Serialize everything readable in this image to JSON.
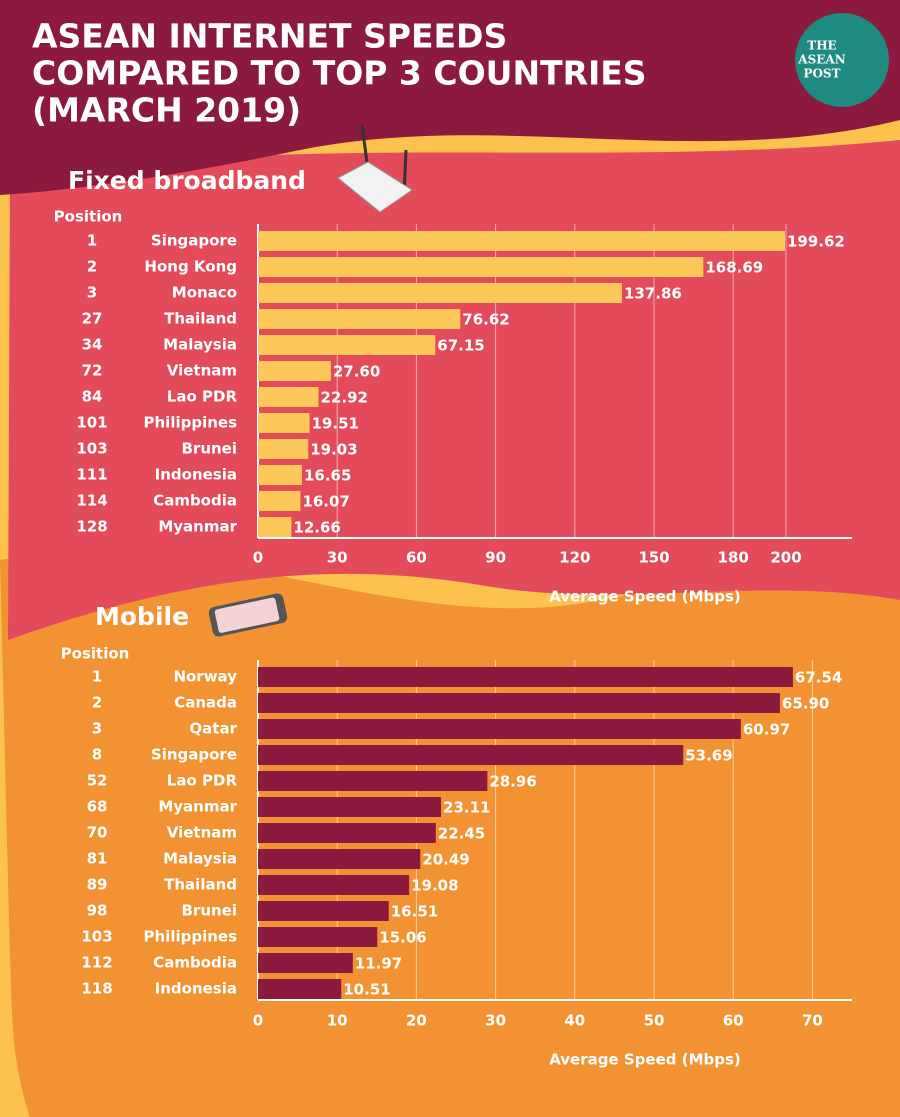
{
  "title": [
    "ASEAN INTERNET SPEEDS",
    "COMPARED TO TOP 3 COUNTRIES",
    "(MARCH 2019)"
  ],
  "logo": [
    "THE",
    "ASEAN",
    "POST"
  ],
  "chart_data": [
    {
      "type": "bar",
      "title": "Fixed broadband",
      "position_header": "Position",
      "positions": [
        1,
        2,
        3,
        27,
        34,
        72,
        84,
        101,
        103,
        111,
        114,
        128
      ],
      "categories": [
        "Singapore",
        "Hong Kong",
        "Monaco",
        "Thailand",
        "Malaysia",
        "Vietnam",
        "Lao PDR",
        "Philippines",
        "Brunei",
        "Indonesia",
        "Cambodia",
        "Myanmar"
      ],
      "values": [
        199.62,
        168.69,
        137.86,
        76.62,
        67.15,
        27.6,
        22.92,
        19.51,
        19.03,
        16.65,
        16.07,
        12.66
      ],
      "value_labels": [
        "199.62",
        "168.69",
        "137.86",
        "76.62",
        "67.15",
        "27.60",
        "22.92",
        "19.51",
        "19.03",
        "16.65",
        "16.07",
        "12.66"
      ],
      "color": "#fdc85a",
      "xlim": [
        0,
        225
      ],
      "xticks": [
        0,
        30,
        60,
        90,
        120,
        150,
        180,
        200
      ],
      "xlabel": "Average Speed (Mbps)",
      "grid": true
    },
    {
      "type": "bar",
      "title": "Mobile",
      "position_header": "Position",
      "positions": [
        1,
        2,
        3,
        8,
        52,
        68,
        70,
        81,
        89,
        98,
        103,
        112,
        118
      ],
      "categories": [
        "Norway",
        "Canada",
        "Qatar",
        "Singapore",
        "Lao PDR",
        "Myanmar",
        "Vietnam",
        "Malaysia",
        "Thailand",
        "Brunei",
        "Philippines",
        "Cambodia",
        "Indonesia"
      ],
      "values": [
        67.54,
        65.9,
        60.97,
        53.69,
        28.96,
        23.11,
        22.45,
        20.49,
        19.08,
        16.51,
        15.06,
        11.97,
        10.51
      ],
      "value_labels": [
        "67.54",
        "65.90",
        "60.97",
        "53.69",
        "28.96",
        "23.11",
        "22.45",
        "20.49",
        "19.08",
        "16.51",
        "15.06",
        "11.97",
        "10.51"
      ],
      "color": "#8b1a3e",
      "xlim": [
        0,
        75
      ],
      "xticks": [
        0,
        10,
        20,
        30,
        40,
        50,
        60,
        70
      ],
      "xlabel": "Average Speed (Mbps)",
      "grid": true
    }
  ]
}
